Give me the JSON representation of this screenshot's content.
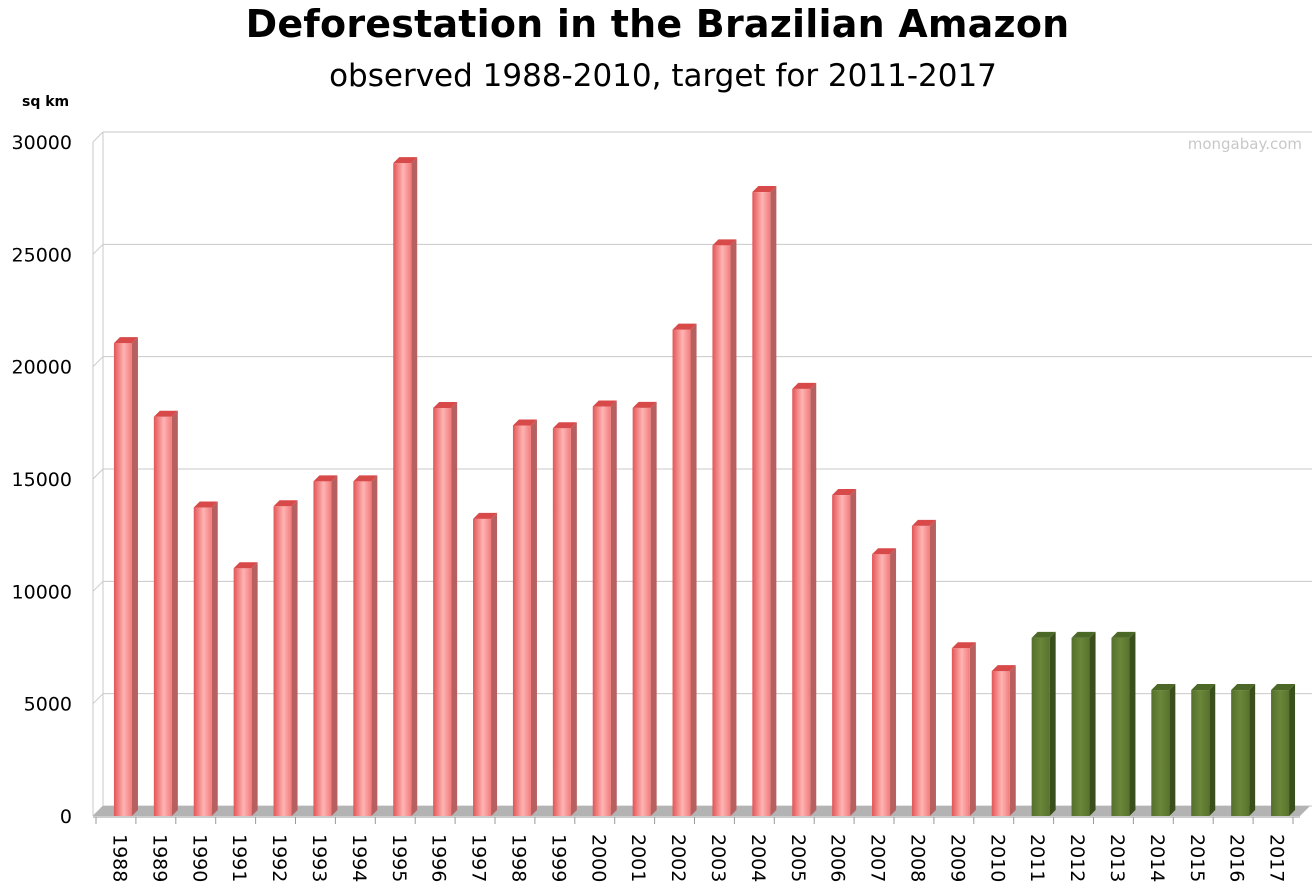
{
  "header": {
    "title": "Deforestation in the Brazilian Amazon",
    "subtitle": "observed 1988-2010, target for 2011-2017",
    "y_unit": "sq km",
    "watermark": "mongabay.com"
  },
  "colors": {
    "observed": "#f07c7c",
    "target": "#5a7330",
    "grid": "#c9c9c9",
    "floor": "#b3b3b3"
  },
  "chart_data": {
    "type": "bar",
    "title": "Deforestation in the Brazilian Amazon",
    "subtitle": "observed 1988-2010, target for 2011-2017",
    "ylabel": "sq km",
    "xlabel": "",
    "ylim": [
      0,
      30000
    ],
    "yticks": [
      0,
      5000,
      10000,
      15000,
      20000,
      25000,
      30000
    ],
    "grid": true,
    "legend": "none",
    "categories": [
      "1988",
      "1989",
      "1990",
      "1991",
      "1992",
      "1993",
      "1994",
      "1995",
      "1996",
      "1997",
      "1998",
      "1999",
      "2000",
      "2001",
      "2002",
      "2003",
      "2004",
      "2005",
      "2006",
      "2007",
      "2008",
      "2009",
      "2010",
      "2011",
      "2012",
      "2013",
      "2014",
      "2015",
      "2016",
      "2017"
    ],
    "values": [
      21050,
      17770,
      13730,
      11030,
      13786,
      14896,
      14896,
      29059,
      18161,
      13227,
      17383,
      17259,
      18226,
      18165,
      21651,
      25396,
      27772,
      19014,
      14286,
      11651,
      12911,
      7464,
      6451,
      7928,
      7928,
      7928,
      5606,
      5606,
      5606,
      5606
    ],
    "observed_count": 23
  }
}
